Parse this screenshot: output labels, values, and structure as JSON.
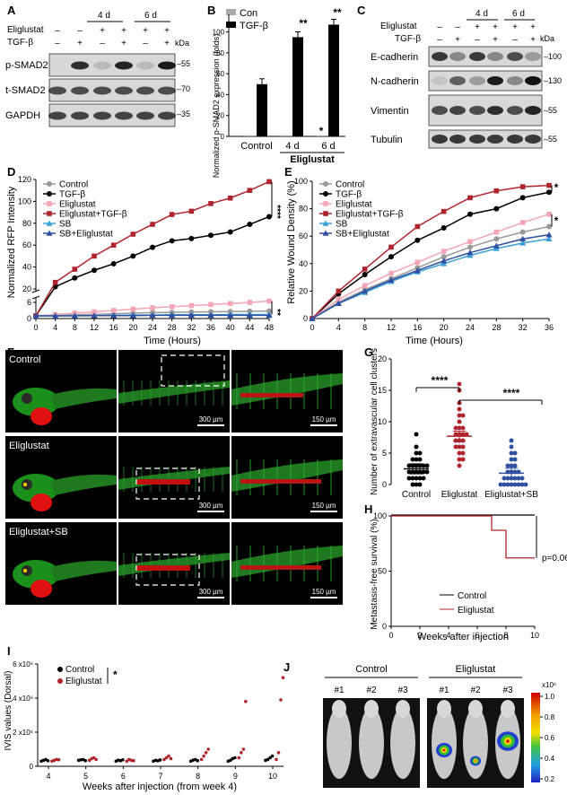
{
  "panel_labels": {
    "a": "A",
    "b": "B",
    "c": "C",
    "d": "D",
    "e": "E",
    "f": "F",
    "g": "G",
    "h": "H",
    "i": "I",
    "j": "J"
  },
  "panelA": {
    "time_4d": "4 d",
    "time_6d": "6 d",
    "row_eliglustat": "Eliglustat",
    "row_tgf": "TGF-β",
    "eliglustat_signs": [
      "–",
      "–",
      "+",
      "+",
      "+",
      "+"
    ],
    "tgf_signs": [
      "–",
      "+",
      "–",
      "+",
      "–",
      "+"
    ],
    "kda": "kDa",
    "blots": [
      {
        "label": "p-SMAD2",
        "kda": "55"
      },
      {
        "label": "t-SMAD2",
        "kda": "70"
      },
      {
        "label": "GAPDH",
        "kda": "35"
      }
    ]
  },
  "panelB": {
    "legend": [
      "Con",
      "TGF-β"
    ],
    "ylabel": "Normalized p-SMAD2 expression (folds)",
    "x_groups": [
      "Control",
      "4 d",
      "6 d"
    ],
    "xlabel_group": "Eliglustat",
    "sig_labels": [
      "**",
      "**",
      "*"
    ]
  },
  "panelC": {
    "time_4d": "4 d",
    "time_6d": "6 d",
    "row_eliglustat": "Eliglustat",
    "row_tgf": "TGF-β",
    "eliglustat_signs": [
      "–",
      "–",
      "+",
      "+",
      "+",
      "+"
    ],
    "tgf_signs": [
      "–",
      "+",
      "–",
      "+",
      "–",
      "+"
    ],
    "kda": "kDa",
    "blots": [
      {
        "label": "E-cadherin",
        "kda": "100"
      },
      {
        "label": "N-cadherin",
        "kda": "130"
      },
      {
        "label": "Vimentin",
        "kda": "55"
      },
      {
        "label": "Tubulin",
        "kda": "55"
      }
    ]
  },
  "panelD": {
    "ylabel": "Normalized RFP Intensity",
    "xlabel": "Time (Hours)",
    "legend": [
      "Control",
      "TGF-β",
      "Eliglustat",
      "Eliglustat+TGF-β",
      "SB",
      "SB+Eliglustat"
    ],
    "sig_labels": [
      "****",
      "**"
    ]
  },
  "panelE": {
    "ylabel": "Relative Wound Density (%)",
    "xlabel": "Time (Hours)",
    "legend": [
      "Control",
      "TGF-β",
      "Eliglustat",
      "Eliglustat+TGF-β",
      "SB",
      "SB+Eliglustat"
    ],
    "sig_labels": [
      "*",
      "*"
    ]
  },
  "panelF": {
    "rows": [
      "Control",
      "Eliglustat",
      "Eliglustat+SB"
    ],
    "scale_300": "300 µm",
    "scale_150": "150 µm"
  },
  "panelG": {
    "ylabel": "Number of extravascular cell clusters",
    "sig_labels": [
      "****",
      "****"
    ]
  },
  "panelH": {
    "ylabel": "Metastasis-free survival (%)",
    "xlabel": "Weeks after injection",
    "pval": "p=0.06",
    "legend": [
      "Control",
      "Eliglustat"
    ]
  },
  "panelI": {
    "ylabel": "IVIS values (Dorsal)",
    "xlabel": "Weeks after injection (from week 4)",
    "legend": [
      "Control",
      "Eliglustat"
    ],
    "sig": "*",
    "ytick_labels": [
      "0",
      "2 x10⁶",
      "4 x10⁶",
      "6 x10⁶"
    ]
  },
  "panelJ": {
    "groups": [
      "Control",
      "Eliglustat"
    ],
    "mice": [
      "#1",
      "#2",
      "#3",
      "#1",
      "#2",
      "#3"
    ],
    "colorbar_unit": "x10⁶",
    "colorbar_ticks": [
      "1.0",
      "0.8",
      "0.6",
      "0.4",
      "0.2"
    ]
  },
  "colors": {
    "control": "#999999",
    "tgf": "#000000",
    "elig": "#f4a6b4",
    "eligtgf": "#b0252d",
    "sb": "#3aa0d8",
    "sbelig": "#2f4fa0",
    "h_control": "#000000",
    "h_elig": "#b0252d"
  },
  "chart_data": [
    {
      "panel": "B",
      "type": "bar",
      "categories": [
        "Control",
        "4 d",
        "6 d"
      ],
      "series": [
        {
          "name": "Con",
          "values": [
            1,
            1,
            1
          ]
        },
        {
          "name": "TGF-β",
          "values": [
            50,
            95,
            107
          ]
        }
      ],
      "ylabel": "Normalized p-SMAD2 expression (folds)",
      "xlabel": "Eliglustat",
      "ylim": [
        0,
        110
      ]
    },
    {
      "panel": "D",
      "type": "line",
      "x": [
        0,
        4,
        8,
        12,
        16,
        20,
        24,
        28,
        32,
        36,
        40,
        44,
        48
      ],
      "series": [
        {
          "name": "Control",
          "values": [
            1,
            1.2,
            1.4,
            1.6,
            1.8,
            2,
            2.2,
            2.3,
            2.4,
            2.5,
            2.6,
            2.7,
            2.8
          ]
        },
        {
          "name": "TGF-β",
          "values": [
            1,
            22,
            30,
            37,
            43,
            50,
            58,
            64,
            66,
            69,
            72,
            79,
            86
          ]
        },
        {
          "name": "Eliglustat",
          "values": [
            1,
            1.5,
            2,
            2.5,
            3,
            3.5,
            4,
            4.4,
            4.8,
            5.2,
            5.6,
            6,
            6.5
          ]
        },
        {
          "name": "Eliglustat+TGF-β",
          "values": [
            1,
            26,
            38,
            50,
            60,
            70,
            79,
            88,
            91,
            98,
            103,
            110,
            118
          ]
        },
        {
          "name": "SB",
          "values": [
            1,
            1,
            1.1,
            1.1,
            1.2,
            1.3,
            1.3,
            1.4,
            1.4,
            1.4,
            1.5,
            1.5,
            1.5
          ]
        },
        {
          "name": "SB+Eliglustat",
          "values": [
            1,
            1,
            1,
            1.1,
            1.1,
            1.1,
            1.2,
            1.2,
            1.2,
            1.2,
            1.2,
            1.2,
            1.2
          ]
        }
      ],
      "xlabel": "Time (Hours)",
      "ylabel": "Normalized RFP Intensity",
      "ylim": [
        0,
        120
      ]
    },
    {
      "panel": "E",
      "type": "line",
      "x": [
        0,
        4,
        8,
        12,
        16,
        20,
        24,
        28,
        32,
        36
      ],
      "series": [
        {
          "name": "Control",
          "values": [
            0,
            12,
            21,
            29,
            37,
            45,
            52,
            58,
            63,
            67
          ]
        },
        {
          "name": "TGF-β",
          "values": [
            0,
            18,
            32,
            45,
            57,
            66,
            76,
            80,
            88,
            92
          ]
        },
        {
          "name": "Eliglustat",
          "values": [
            0,
            14,
            24,
            33,
            41,
            49,
            56,
            63,
            70,
            76
          ]
        },
        {
          "name": "Eliglustat+TGF-β",
          "values": [
            0,
            20,
            36,
            52,
            67,
            78,
            88,
            93,
            96,
            97
          ]
        },
        {
          "name": "SB",
          "values": [
            0,
            11,
            19,
            27,
            34,
            40,
            46,
            51,
            55,
            58
          ]
        },
        {
          "name": "SB+Eliglustat",
          "values": [
            0,
            11,
            20,
            28,
            35,
            42,
            48,
            53,
            58,
            61
          ]
        }
      ],
      "xlabel": "Time (Hours)",
      "ylabel": "Relative Wound Density (%)",
      "ylim": [
        0,
        100
      ]
    },
    {
      "panel": "G",
      "type": "scatter",
      "categories": [
        "Control",
        "Eliglustat",
        "Eliglustat+SB"
      ],
      "means": [
        2.5,
        7.7,
        1.8
      ],
      "ylabel": "Number of extravascular cell clusters",
      "ylim": [
        0,
        20
      ]
    },
    {
      "panel": "H",
      "type": "line",
      "series": [
        {
          "name": "Control",
          "x": [
            0,
            10
          ],
          "values": [
            100,
            100
          ]
        },
        {
          "name": "Eliglustat",
          "x": [
            0,
            7,
            7,
            8,
            8,
            10
          ],
          "values": [
            100,
            100,
            87,
            87,
            62,
            62
          ]
        }
      ],
      "xlabel": "Weeks after injection",
      "ylabel": "Metastasis-free survival (%)",
      "xlim": [
        0,
        10
      ],
      "ylim": [
        0,
        100
      ]
    },
    {
      "panel": "I",
      "type": "scatter",
      "x": [
        4,
        5,
        6,
        7,
        8,
        9,
        10
      ],
      "series": [
        {
          "name": "Control",
          "values": [
            [
              0.3,
              0.35,
              0.4,
              0.32
            ],
            [
              0.35,
              0.38,
              0.4,
              0.33
            ],
            [
              0.3,
              0.36,
              0.33,
              0.38
            ],
            [
              0.3,
              0.35,
              0.32,
              0.37
            ],
            [
              0.3,
              0.36,
              0.4,
              0.33
            ],
            [
              0.3,
              0.35,
              0.45,
              0.5
            ],
            [
              0.35,
              0.4,
              0.5,
              0.6
            ]
          ]
        },
        {
          "name": "Eliglustat",
          "values": [
            [
              0.3,
              0.35,
              0.4,
              0.38
            ],
            [
              0.35,
              0.45,
              0.5,
              0.4
            ],
            [
              0.3,
              0.4,
              0.35,
              0.33
            ],
            [
              0.4,
              0.5,
              0.6,
              0.45
            ],
            [
              0.4,
              0.6,
              0.8,
              1.0
            ],
            [
              0.5,
              0.8,
              1.0,
              3.8
            ],
            [
              0.4,
              0.8,
              3.9,
              5.2
            ]
          ]
        }
      ],
      "xlabel": "Weeks after injection (from week 4)",
      "ylabel": "IVIS values (Dorsal)",
      "ylim": [
        0,
        6000000
      ]
    }
  ]
}
